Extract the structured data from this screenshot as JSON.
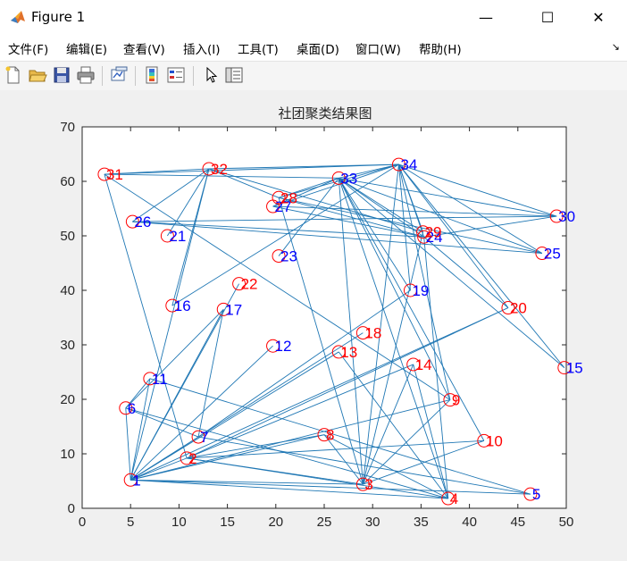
{
  "window": {
    "title": "Figure 1",
    "minimize_glyph": "—",
    "maximize_glyph": "☐",
    "close_glyph": "✕"
  },
  "menu": {
    "items": [
      "文件(F)",
      "编辑(E)",
      "查看(V)",
      "插入(I)",
      "工具(T)",
      "桌面(D)",
      "窗口(W)",
      "帮助(H)"
    ],
    "overflow_glyph": "↘"
  },
  "toolbar": {
    "icons": [
      "new-figure-icon",
      "open-file-icon",
      "save-icon",
      "print-icon",
      "link-plot-icon",
      "insert-colorbar-icon",
      "insert-legend-icon",
      "edit-plot-pointer-icon",
      "property-inspector-icon"
    ]
  },
  "colors": {
    "edge": "#1f77b4",
    "node_circle": "#ff0000",
    "label_red": "#ff0000",
    "label_blue": "#0000ff"
  },
  "chart_data": {
    "type": "scatter",
    "title": "社团聚类结果图",
    "xlabel": "",
    "ylabel": "",
    "xlim": [
      0,
      50
    ],
    "ylim": [
      0,
      70
    ],
    "xticks": [
      0,
      5,
      10,
      15,
      20,
      25,
      30,
      35,
      40,
      45,
      50
    ],
    "yticks": [
      0,
      10,
      20,
      30,
      40,
      50,
      60,
      70
    ],
    "grid": false,
    "nodes": [
      {
        "id": "1",
        "x": 5.0,
        "y": 5.2,
        "group": "blue"
      },
      {
        "id": "2",
        "x": 10.8,
        "y": 9.2,
        "group": "red"
      },
      {
        "id": "3",
        "x": 29.0,
        "y": 4.4,
        "group": "red"
      },
      {
        "id": "4",
        "x": 37.8,
        "y": 1.8,
        "group": "red"
      },
      {
        "id": "5",
        "x": 46.3,
        "y": 2.6,
        "group": "blue"
      },
      {
        "id": "6",
        "x": 4.5,
        "y": 18.4,
        "group": "blue"
      },
      {
        "id": "7",
        "x": 12.0,
        "y": 13.1,
        "group": "blue"
      },
      {
        "id": "8",
        "x": 25.0,
        "y": 13.5,
        "group": "red"
      },
      {
        "id": "9",
        "x": 38.0,
        "y": 19.9,
        "group": "red"
      },
      {
        "id": "10",
        "x": 41.5,
        "y": 12.4,
        "group": "red"
      },
      {
        "id": "11",
        "x": 7.0,
        "y": 23.8,
        "group": "blue"
      },
      {
        "id": "12",
        "x": 19.7,
        "y": 29.8,
        "group": "blue"
      },
      {
        "id": "13",
        "x": 26.5,
        "y": 28.7,
        "group": "red"
      },
      {
        "id": "14",
        "x": 34.2,
        "y": 26.4,
        "group": "red"
      },
      {
        "id": "15",
        "x": 49.8,
        "y": 25.8,
        "group": "blue"
      },
      {
        "id": "16",
        "x": 9.3,
        "y": 37.2,
        "group": "blue"
      },
      {
        "id": "17",
        "x": 14.6,
        "y": 36.5,
        "group": "blue"
      },
      {
        "id": "18",
        "x": 29.0,
        "y": 32.2,
        "group": "red"
      },
      {
        "id": "19",
        "x": 33.9,
        "y": 40.0,
        "group": "blue"
      },
      {
        "id": "20",
        "x": 44.0,
        "y": 36.8,
        "group": "red"
      },
      {
        "id": "21",
        "x": 8.8,
        "y": 50.0,
        "group": "blue"
      },
      {
        "id": "22",
        "x": 16.2,
        "y": 41.2,
        "group": "red"
      },
      {
        "id": "23",
        "x": 20.3,
        "y": 46.3,
        "group": "blue"
      },
      {
        "id": "24",
        "x": 35.3,
        "y": 49.8,
        "group": "blue"
      },
      {
        "id": "25",
        "x": 47.5,
        "y": 46.8,
        "group": "blue"
      },
      {
        "id": "26",
        "x": 5.2,
        "y": 52.6,
        "group": "blue"
      },
      {
        "id": "27",
        "x": 19.7,
        "y": 55.4,
        "group": "blue"
      },
      {
        "id": "28",
        "x": 20.3,
        "y": 57.0,
        "group": "red"
      },
      {
        "id": "29",
        "x": 35.2,
        "y": 50.7,
        "group": "red"
      },
      {
        "id": "30",
        "x": 49.0,
        "y": 53.6,
        "group": "blue"
      },
      {
        "id": "31",
        "x": 2.3,
        "y": 61.3,
        "group": "red"
      },
      {
        "id": "32",
        "x": 13.1,
        "y": 62.3,
        "group": "red"
      },
      {
        "id": "33",
        "x": 26.5,
        "y": 60.6,
        "group": "blue"
      },
      {
        "id": "34",
        "x": 32.7,
        "y": 63.1,
        "group": "blue"
      }
    ],
    "edges": [
      [
        "1",
        "2"
      ],
      [
        "1",
        "3"
      ],
      [
        "1",
        "4"
      ],
      [
        "1",
        "5"
      ],
      [
        "1",
        "6"
      ],
      [
        "1",
        "7"
      ],
      [
        "1",
        "8"
      ],
      [
        "1",
        "9"
      ],
      [
        "1",
        "11"
      ],
      [
        "1",
        "12"
      ],
      [
        "1",
        "13"
      ],
      [
        "1",
        "17"
      ],
      [
        "1",
        "18"
      ],
      [
        "1",
        "20"
      ],
      [
        "1",
        "22"
      ],
      [
        "1",
        "32"
      ],
      [
        "2",
        "3"
      ],
      [
        "2",
        "4"
      ],
      [
        "2",
        "8"
      ],
      [
        "2",
        "14"
      ],
      [
        "2",
        "20"
      ],
      [
        "2",
        "31"
      ],
      [
        "2",
        "10"
      ],
      [
        "3",
        "8"
      ],
      [
        "3",
        "9"
      ],
      [
        "3",
        "10"
      ],
      [
        "3",
        "14"
      ],
      [
        "3",
        "28"
      ],
      [
        "3",
        "29"
      ],
      [
        "3",
        "33"
      ],
      [
        "3",
        "34"
      ],
      [
        "4",
        "8"
      ],
      [
        "4",
        "13"
      ],
      [
        "4",
        "14"
      ],
      [
        "4",
        "24"
      ],
      [
        "4",
        "33"
      ],
      [
        "5",
        "7"
      ],
      [
        "5",
        "11"
      ],
      [
        "6",
        "7"
      ],
      [
        "6",
        "11"
      ],
      [
        "6",
        "17"
      ],
      [
        "6",
        "4"
      ],
      [
        "7",
        "17"
      ],
      [
        "7",
        "19"
      ],
      [
        "9",
        "31"
      ],
      [
        "9",
        "33"
      ],
      [
        "9",
        "34"
      ],
      [
        "10",
        "33"
      ],
      [
        "15",
        "33"
      ],
      [
        "15",
        "34"
      ],
      [
        "16",
        "32"
      ],
      [
        "16",
        "34"
      ],
      [
        "19",
        "33"
      ],
      [
        "19",
        "34"
      ],
      [
        "20",
        "24"
      ],
      [
        "20",
        "34"
      ],
      [
        "21",
        "32"
      ],
      [
        "23",
        "33"
      ],
      [
        "24",
        "26"
      ],
      [
        "24",
        "27"
      ],
      [
        "24",
        "28"
      ],
      [
        "24",
        "30"
      ],
      [
        "24",
        "33"
      ],
      [
        "24",
        "34"
      ],
      [
        "25",
        "26"
      ],
      [
        "25",
        "28"
      ],
      [
        "25",
        "33"
      ],
      [
        "25",
        "34"
      ],
      [
        "26",
        "32"
      ],
      [
        "26",
        "30"
      ],
      [
        "27",
        "33"
      ],
      [
        "27",
        "34"
      ],
      [
        "27",
        "30"
      ],
      [
        "28",
        "32"
      ],
      [
        "28",
        "33"
      ],
      [
        "28",
        "34"
      ],
      [
        "29",
        "32"
      ],
      [
        "29",
        "33"
      ],
      [
        "29",
        "34"
      ],
      [
        "30",
        "33"
      ],
      [
        "30",
        "34"
      ],
      [
        "31",
        "32"
      ],
      [
        "31",
        "33"
      ],
      [
        "31",
        "34"
      ],
      [
        "32",
        "34"
      ],
      [
        "33",
        "34"
      ]
    ]
  }
}
